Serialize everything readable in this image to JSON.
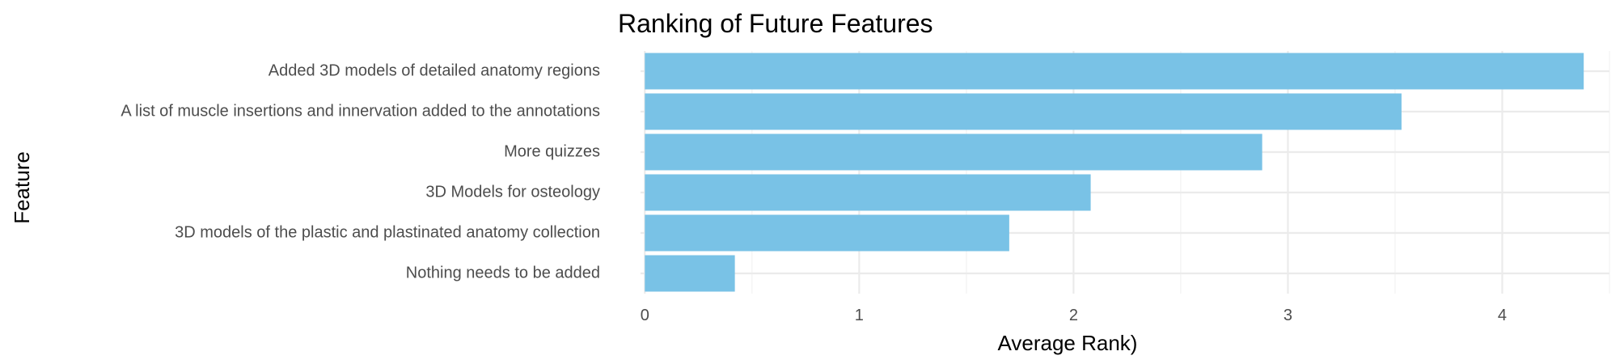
{
  "chart_data": {
    "type": "bar",
    "orientation": "horizontal",
    "title": "Ranking of Future Features",
    "xlabel": "Average Rank)",
    "ylabel": "Feature",
    "categories": [
      "Added 3D models of detailed anatomy regions",
      "A list of muscle insertions and innervation added to the annotations",
      "More quizzes",
      "3D Models for osteology",
      "3D models of the plastic and plastinated anatomy collection",
      "Nothing needs to be added"
    ],
    "values": [
      4.38,
      3.53,
      2.88,
      2.08,
      1.7,
      0.42
    ],
    "xlim": [
      -0.02,
      4.5
    ],
    "xticks": [
      "0",
      "1",
      "2",
      "3",
      "4"
    ],
    "bar_color": "#79c2e6",
    "grid": true,
    "legend": "none"
  }
}
